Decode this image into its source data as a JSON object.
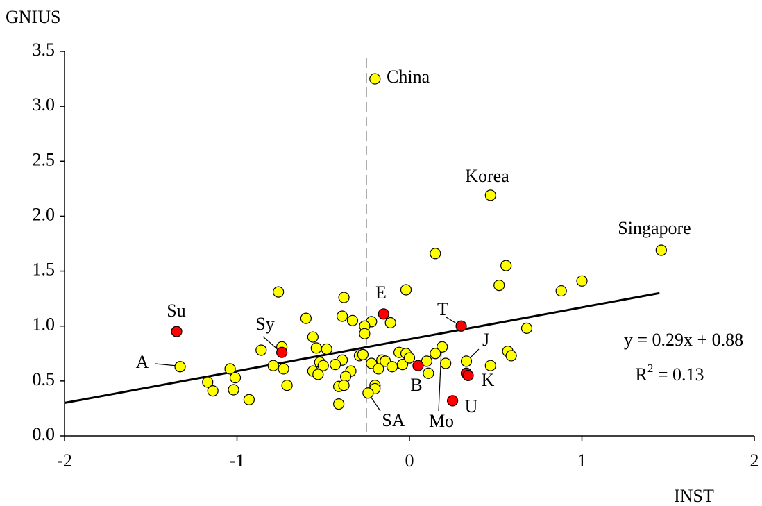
{
  "chart_data": {
    "type": "scatter",
    "y_label": "GNIUS",
    "x_label": "INST",
    "xlim": [
      -2,
      2
    ],
    "ylim": [
      0,
      3.5
    ],
    "xticks": [
      -2,
      -1,
      0,
      1,
      2
    ],
    "yticks": [
      {
        "value": 0,
        "label": "0.0"
      },
      0.5,
      {
        "value": 1,
        "label": "1.0"
      },
      1.5,
      {
        "value": 2,
        "label": "2.0"
      },
      2.5,
      {
        "value": 3,
        "label": "3.0"
      },
      3.5
    ],
    "grid": false,
    "reference_x": -0.25,
    "series": [
      {
        "color": "#ffff00",
        "x": [
          -0.2,
          0.47,
          1.46,
          -1.33,
          0.15,
          0.56,
          1.0,
          0.88,
          0.52,
          -0.02,
          -0.76,
          -0.38,
          -0.6,
          -0.39,
          -0.33,
          -0.22,
          -0.11,
          -0.26,
          -0.26,
          0.68,
          -0.74,
          -0.86,
          -0.56,
          -0.54,
          -0.48,
          0.19,
          -0.06,
          -0.02,
          -0.79,
          -0.73,
          -0.29,
          -0.27,
          0.15,
          0.1,
          0.57,
          0.59,
          0.33,
          0.47,
          0.21,
          -1.04,
          -0.52,
          -0.5,
          -0.39,
          -0.34,
          -0.22,
          -0.16,
          -0.14,
          -0.1,
          -0.04,
          0.0,
          -0.18,
          -0.56,
          -0.53,
          -0.43,
          0.11,
          -1.01,
          -0.37,
          -0.71,
          -1.17,
          -1.14,
          -1.02,
          -0.93,
          -0.41,
          -0.38,
          -0.2,
          -0.2,
          -0.24,
          -0.41
        ],
        "values": [
          3.25,
          2.19,
          1.69,
          0.63,
          1.66,
          1.55,
          1.41,
          1.32,
          1.37,
          1.33,
          1.31,
          1.26,
          1.07,
          1.09,
          1.05,
          1.04,
          1.03,
          1.0,
          0.93,
          0.98,
          0.81,
          0.78,
          0.9,
          0.8,
          0.79,
          0.81,
          0.76,
          0.75,
          0.64,
          0.61,
          0.73,
          0.74,
          0.75,
          0.68,
          0.77,
          0.73,
          0.68,
          0.64,
          0.66,
          0.61,
          0.67,
          0.64,
          0.69,
          0.59,
          0.66,
          0.69,
          0.68,
          0.63,
          0.65,
          0.71,
          0.61,
          0.59,
          0.56,
          0.65,
          0.57,
          0.53,
          0.54,
          0.46,
          0.49,
          0.41,
          0.42,
          0.33,
          0.45,
          0.46,
          0.46,
          0.43,
          0.39,
          0.29
        ]
      },
      {
        "color": "#ff0000",
        "x": [
          -1.35,
          -0.74,
          -0.15,
          0.3,
          0.05,
          0.33,
          0.34,
          0.25
        ],
        "values": [
          0.95,
          0.76,
          1.11,
          1.0,
          0.64,
          0.57,
          0.55,
          0.32
        ]
      }
    ],
    "trendline": {
      "x": [
        -2,
        1.45
      ],
      "values": [
        0.3,
        1.3
      ]
    },
    "equation": "y = 0.29x + 0.88",
    "r_squared": {
      "base": "R",
      "sup": "2",
      "rest": " = 0.13"
    },
    "annotations": [
      "China",
      "Korea",
      "Singapore",
      "A",
      "Su",
      "Sy",
      "E",
      "T",
      "J",
      "K",
      "B",
      "U",
      "SA",
      "Mo"
    ]
  }
}
